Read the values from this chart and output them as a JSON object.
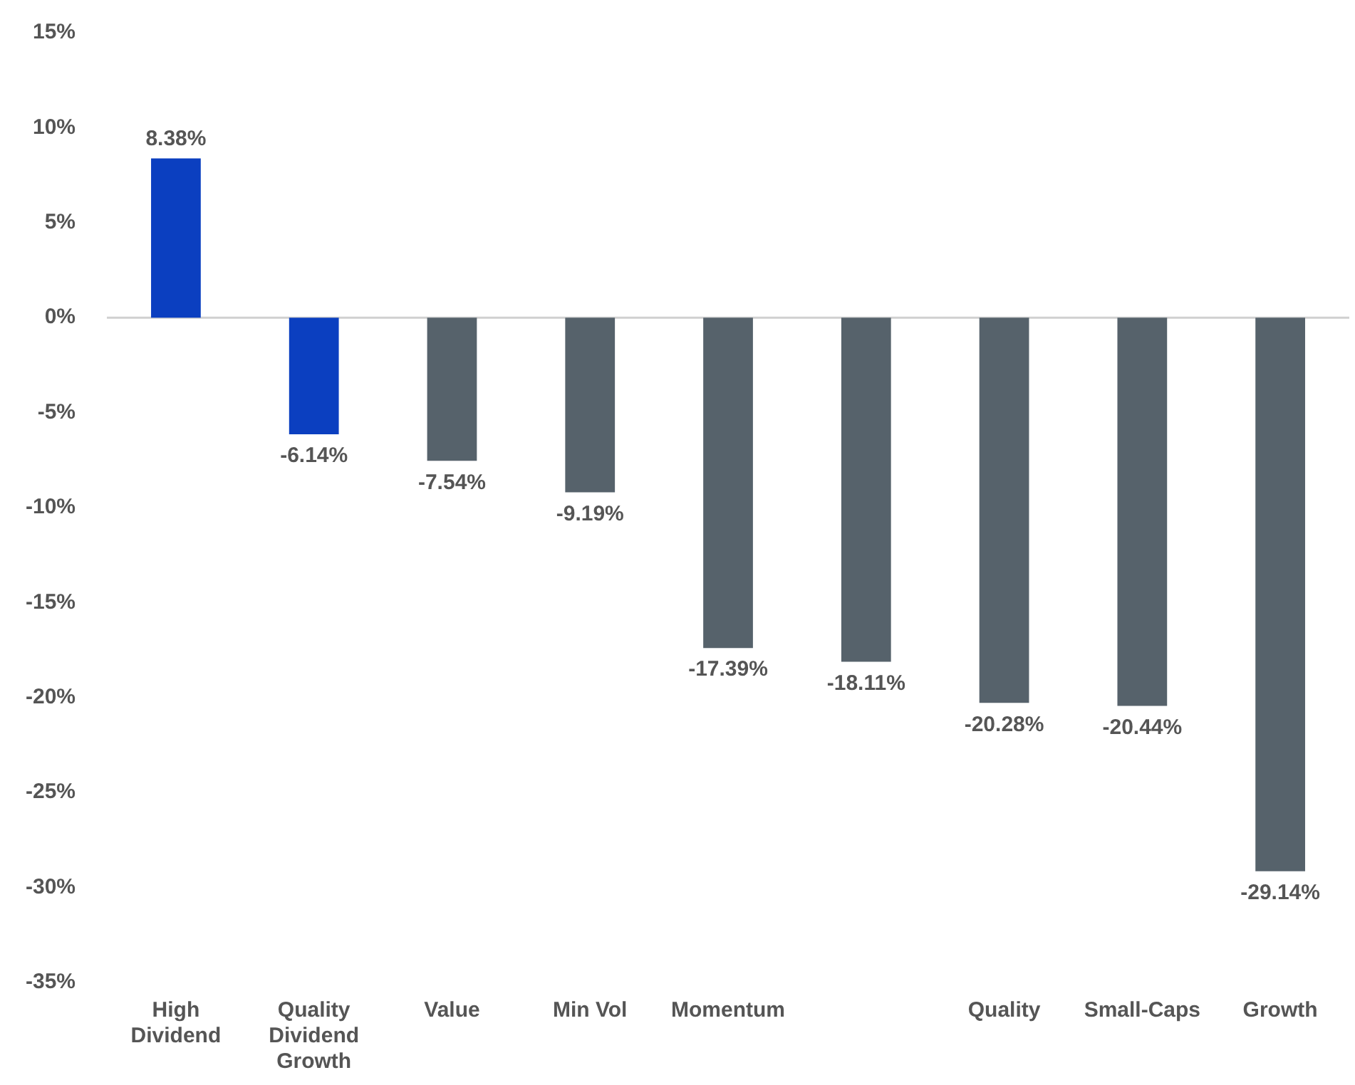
{
  "chart_data": {
    "type": "bar",
    "categories": [
      "High Dividend",
      "Quality Dividend Growth",
      "Value",
      "Min Vol",
      "Momentum",
      null,
      "Quality",
      "Small-Caps",
      "Growth"
    ],
    "values": [
      8.38,
      -6.14,
      -7.54,
      -9.19,
      -17.39,
      -18.11,
      -20.28,
      -20.44,
      -29.14
    ],
    "colors": [
      "#0b3fc0",
      "#0b3fc0",
      "#56626b",
      "#56626b",
      "#56626b",
      "#56626b",
      "#56626b",
      "#56626b",
      "#56626b"
    ],
    "value_labels": [
      "8.38%",
      "-6.14%",
      "-7.54%",
      "-9.19%",
      "-17.39%",
      "-18.11%",
      "-20.28%",
      "-20.44%",
      "-29.14%"
    ],
    "ylim": [
      -35,
      15
    ],
    "yticks": [
      {
        "value": 15,
        "label": "15%"
      },
      {
        "value": 10,
        "label": "10%"
      },
      {
        "value": 5,
        "label": "5%"
      },
      {
        "value": 0,
        "label": "0%"
      },
      {
        "value": -5,
        "label": "-5%"
      },
      {
        "value": -10,
        "label": "-10%"
      },
      {
        "value": -15,
        "label": "-15%"
      },
      {
        "value": -20,
        "label": "-20%"
      },
      {
        "value": -25,
        "label": "-25%"
      },
      {
        "value": -30,
        "label": "-30%"
      },
      {
        "value": -35,
        "label": "-35%"
      }
    ]
  }
}
